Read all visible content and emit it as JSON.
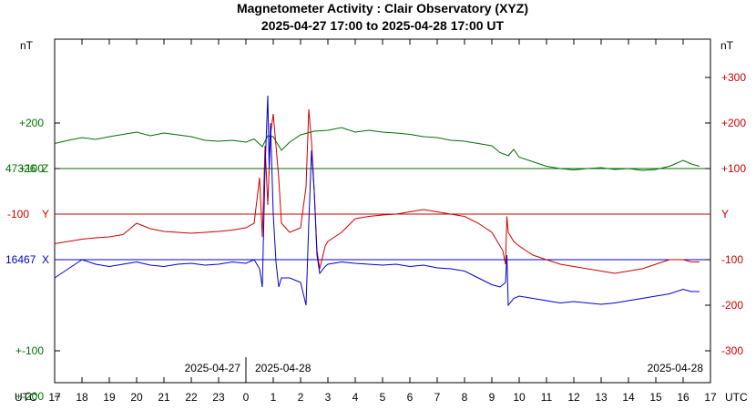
{
  "chart_data": {
    "type": "line",
    "title": "Magnetometer Activity : Clair Observatory (XYZ)",
    "subtitle": "2025-04-27 17:00 to 2025-04-28 17:00 UT",
    "xlabel": "UTC",
    "units_left": "nT",
    "units_right": "nT",
    "x_ticks": [
      "17",
      "18",
      "19",
      "20",
      "21",
      "22",
      "23",
      "0",
      "1",
      "2",
      "3",
      "4",
      "5",
      "6",
      "7",
      "8",
      "9",
      "10",
      "11",
      "12",
      "13",
      "14",
      "15",
      "16",
      "17"
    ],
    "xlim": [
      0,
      24
    ],
    "date_labels": [
      {
        "text": "2025-04-27",
        "x": 6.0
      },
      {
        "text": "2025-04-28",
        "x": 8.0
      },
      {
        "text": "2025-04-28",
        "x": 23.0
      }
    ],
    "baselines": {
      "z": {
        "value_label": "47326",
        "axis_letter": "Z",
        "color": "#007000"
      },
      "y": {
        "value_label": "-100",
        "axis_letter": "Y",
        "color": "#cc0000"
      },
      "x": {
        "value_label": "16467",
        "axis_letter": "X",
        "color": "#0000cc"
      }
    },
    "left_axis": {
      "color": "#007000",
      "ticks": [
        {
          "label": "+200",
          "value": 200
        },
        {
          "label": "+100",
          "value": 100
        },
        {
          "label": "+-100",
          "value": -300
        },
        {
          "label": "+-200",
          "value": -400
        }
      ],
      "ylim": [
        -500,
        350
      ]
    },
    "right_axis": {
      "color": "#cc0000",
      "ticks": [
        {
          "label": "+300",
          "value": 300
        },
        {
          "label": "+200",
          "value": 200
        },
        {
          "label": "+100",
          "value": 100
        },
        {
          "label": "-100",
          "value": -100
        },
        {
          "label": "-200",
          "value": -200
        },
        {
          "label": "-300",
          "value": -300
        }
      ],
      "ylim": [
        -350,
        350
      ]
    },
    "series": [
      {
        "color": "#007000",
        "values": [
          [
            0,
            55
          ],
          [
            0.5,
            62
          ],
          [
            1,
            68
          ],
          [
            1.5,
            64
          ],
          [
            2,
            70
          ],
          [
            2.5,
            75
          ],
          [
            3,
            80
          ],
          [
            3.5,
            72
          ],
          [
            4,
            78
          ],
          [
            4.5,
            74
          ],
          [
            5,
            70
          ],
          [
            5.5,
            62
          ],
          [
            6,
            60
          ],
          [
            6.5,
            62
          ],
          [
            7,
            58
          ],
          [
            7.3,
            65
          ],
          [
            7.6,
            48
          ],
          [
            7.8,
            72
          ],
          [
            8,
            70
          ],
          [
            8.3,
            40
          ],
          [
            8.6,
            58
          ],
          [
            9,
            74
          ],
          [
            9.5,
            82
          ],
          [
            10,
            84
          ],
          [
            10.5,
            90
          ],
          [
            11,
            80
          ],
          [
            11.5,
            84
          ],
          [
            12,
            80
          ],
          [
            12.5,
            78
          ],
          [
            13,
            75
          ],
          [
            13.5,
            70
          ],
          [
            14,
            68
          ],
          [
            14.5,
            62
          ],
          [
            15,
            60
          ],
          [
            15.5,
            55
          ],
          [
            16,
            50
          ],
          [
            16.3,
            35
          ],
          [
            16.6,
            28
          ],
          [
            16.8,
            42
          ],
          [
            17,
            25
          ],
          [
            17.5,
            15
          ],
          [
            18,
            5
          ],
          [
            18.5,
            0
          ],
          [
            19,
            -3
          ],
          [
            19.5,
            0
          ],
          [
            20,
            2
          ],
          [
            20.5,
            -2
          ],
          [
            21,
            0
          ],
          [
            21.5,
            -4
          ],
          [
            22,
            -2
          ],
          [
            22.5,
            5
          ],
          [
            23,
            18
          ],
          [
            23.3,
            10
          ],
          [
            23.6,
            5
          ]
        ]
      },
      {
        "color": "#cc0000",
        "values": [
          [
            0,
            -65
          ],
          [
            0.5,
            -60
          ],
          [
            1,
            -55
          ],
          [
            1.5,
            -52
          ],
          [
            2,
            -50
          ],
          [
            2.5,
            -45
          ],
          [
            3,
            -20
          ],
          [
            3.5,
            -32
          ],
          [
            4,
            -38
          ],
          [
            4.5,
            -40
          ],
          [
            5,
            -42
          ],
          [
            5.5,
            -40
          ],
          [
            6,
            -38
          ],
          [
            6.5,
            -35
          ],
          [
            7,
            -30
          ],
          [
            7.3,
            -20
          ],
          [
            7.5,
            80
          ],
          [
            7.6,
            -50
          ],
          [
            7.7,
            150
          ],
          [
            7.8,
            20
          ],
          [
            7.9,
            175
          ],
          [
            8,
            220
          ],
          [
            8.1,
            150
          ],
          [
            8.2,
            80
          ],
          [
            8.3,
            -20
          ],
          [
            8.6,
            -40
          ],
          [
            9,
            -30
          ],
          [
            9.2,
            60
          ],
          [
            9.3,
            230
          ],
          [
            9.4,
            160
          ],
          [
            9.5,
            50
          ],
          [
            9.6,
            -80
          ],
          [
            9.7,
            -120
          ],
          [
            9.9,
            -70
          ],
          [
            10,
            -60
          ],
          [
            10.5,
            -40
          ],
          [
            11,
            -10
          ],
          [
            11.5,
            -5
          ],
          [
            12,
            -2
          ],
          [
            12.5,
            0
          ],
          [
            13,
            5
          ],
          [
            13.5,
            10
          ],
          [
            14,
            5
          ],
          [
            14.5,
            0
          ],
          [
            15,
            -5
          ],
          [
            15.5,
            -20
          ],
          [
            16,
            -40
          ],
          [
            16.3,
            -70
          ],
          [
            16.4,
            -80
          ],
          [
            16.5,
            -110
          ],
          [
            16.55,
            -5
          ],
          [
            16.6,
            -40
          ],
          [
            16.8,
            -60
          ],
          [
            17,
            -70
          ],
          [
            17.5,
            -90
          ],
          [
            18,
            -100
          ],
          [
            18.5,
            -110
          ],
          [
            19,
            -115
          ],
          [
            19.5,
            -120
          ],
          [
            20,
            -125
          ],
          [
            20.5,
            -130
          ],
          [
            21,
            -125
          ],
          [
            21.5,
            -120
          ],
          [
            22,
            -110
          ],
          [
            22.5,
            -100
          ],
          [
            23,
            -100
          ],
          [
            23.3,
            -105
          ],
          [
            23.6,
            -105
          ]
        ]
      },
      {
        "color": "#0000cc",
        "values": [
          [
            0,
            -40
          ],
          [
            0.5,
            -20
          ],
          [
            1,
            0
          ],
          [
            1.5,
            -10
          ],
          [
            2,
            -15
          ],
          [
            2.5,
            -10
          ],
          [
            3,
            -5
          ],
          [
            3.5,
            -12
          ],
          [
            4,
            -15
          ],
          [
            4.5,
            -10
          ],
          [
            5,
            -8
          ],
          [
            5.5,
            -12
          ],
          [
            6,
            -10
          ],
          [
            6.5,
            -5
          ],
          [
            7,
            -8
          ],
          [
            7.3,
            0
          ],
          [
            7.5,
            -20
          ],
          [
            7.6,
            -60
          ],
          [
            7.7,
            200
          ],
          [
            7.75,
            280
          ],
          [
            7.8,
            360
          ],
          [
            7.85,
            200
          ],
          [
            7.9,
            300
          ],
          [
            8,
            100
          ],
          [
            8.1,
            -5
          ],
          [
            8.2,
            -60
          ],
          [
            8.3,
            -40
          ],
          [
            8.6,
            -40
          ],
          [
            9,
            -50
          ],
          [
            9.2,
            -100
          ],
          [
            9.3,
            80
          ],
          [
            9.4,
            240
          ],
          [
            9.5,
            150
          ],
          [
            9.6,
            10
          ],
          [
            9.7,
            -30
          ],
          [
            9.9,
            -15
          ],
          [
            10,
            -10
          ],
          [
            10.5,
            -5
          ],
          [
            11,
            -8
          ],
          [
            11.5,
            -10
          ],
          [
            12,
            -12
          ],
          [
            12.5,
            -10
          ],
          [
            13,
            -15
          ],
          [
            13.5,
            -12
          ],
          [
            14,
            -18
          ],
          [
            14.5,
            -20
          ],
          [
            15,
            -25
          ],
          [
            15.5,
            -40
          ],
          [
            16,
            -55
          ],
          [
            16.3,
            -60
          ],
          [
            16.5,
            -50
          ],
          [
            16.55,
            10
          ],
          [
            16.6,
            -100
          ],
          [
            16.8,
            -85
          ],
          [
            17,
            -80
          ],
          [
            17.5,
            -85
          ],
          [
            18,
            -90
          ],
          [
            18.5,
            -95
          ],
          [
            19,
            -92
          ],
          [
            19.5,
            -95
          ],
          [
            20,
            -98
          ],
          [
            20.5,
            -95
          ],
          [
            21,
            -90
          ],
          [
            21.5,
            -85
          ],
          [
            22,
            -80
          ],
          [
            22.5,
            -75
          ],
          [
            23,
            -65
          ],
          [
            23.3,
            -70
          ],
          [
            23.6,
            -70
          ]
        ]
      }
    ]
  }
}
